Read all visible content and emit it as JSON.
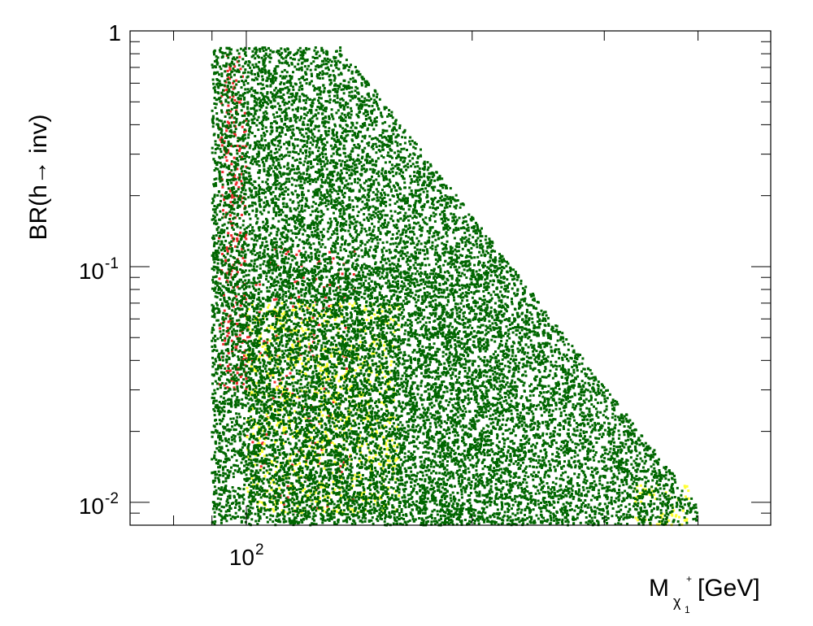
{
  "chart_data": {
    "type": "scatter",
    "title": "",
    "xlabel": {
      "main": "M",
      "sub": "χ",
      "sup": "+",
      "subsub": "1",
      "unit": "[GeV]"
    },
    "ylabel": "BR(h→ inv)",
    "xscale": "log",
    "yscale": "log",
    "xlim": [
      70,
      500
    ],
    "ylim": [
      0.008,
      1
    ],
    "grid": false,
    "legend": "none",
    "x_tick_labels": [
      {
        "value": 100,
        "base": "10",
        "exp": "2"
      }
    ],
    "y_tick_labels": [
      {
        "value": 1,
        "base": "1",
        "exp": ""
      },
      {
        "value": 0.1,
        "base": "10",
        "exp": "-1"
      },
      {
        "value": 0.01,
        "base": "10",
        "exp": "-2"
      }
    ],
    "series": [
      {
        "color": "#ee2c2c",
        "regions": [
          {
            "x_range": [
              92,
              100
            ],
            "y_range": [
              0.03,
              0.8
            ],
            "count": 260
          },
          {
            "x_range": [
              100,
              140
            ],
            "y_range": [
              0.009,
              0.12
            ],
            "count": 160
          }
        ]
      },
      {
        "color": "#ffff33",
        "regions": [
          {
            "x_range": [
              100,
              160
            ],
            "y_range": [
              0.009,
              0.07
            ],
            "count": 900
          },
          {
            "x_range": [
              330,
              390
            ],
            "y_range": [
              0.008,
              0.012
            ],
            "count": 60
          }
        ]
      },
      {
        "color": "#006600",
        "regions": [
          {
            "x_range": [
              90,
              400
            ],
            "y_range": [
              0.008,
              0.85
            ],
            "count": 14000
          },
          {
            "x_range": [
              100,
              220
            ],
            "y_range": [
              0.008,
              0.1
            ],
            "count": 1800
          }
        ]
      }
    ]
  }
}
